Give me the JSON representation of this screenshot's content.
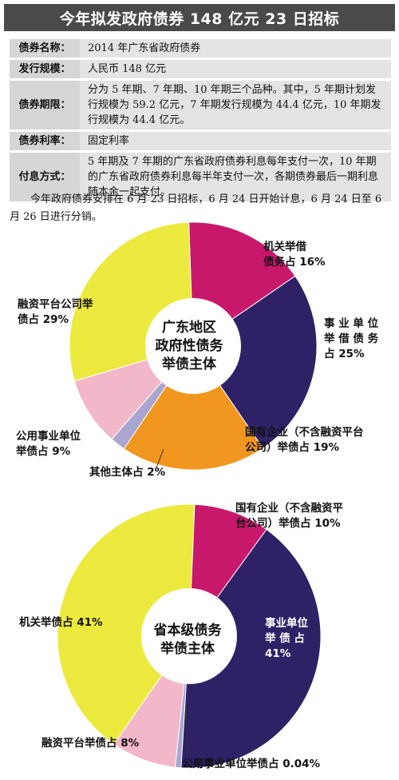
{
  "title": "今年拟发政府债券 148 亿元 23 日招标",
  "info": [
    {
      "key": "债券名称：",
      "value": "2014 年广东省政府债券"
    },
    {
      "key": "发行规模：",
      "value": "人民币 148 亿元"
    },
    {
      "key": "债券期限：",
      "value": "分为 5 年期、7 年期、10 年期三个品种。其中，5 年期计划发行规模为 59.2 亿元，7 年期发行规模为 44.4 亿元，10 年期发行规模为 44.4 亿元。"
    },
    {
      "key": "债券利率：",
      "value": "固定利率"
    },
    {
      "key": "付息方式：",
      "value": "5 年期及 7 年期的广东省政府债券利息每年支付一次，10 年期的广东省政府债券利息每半年支付一次，各期债券最后一期利息随本金一起支付。"
    }
  ],
  "paragraph": "今年政府债券安排在 6 月 23 日招标，6 月 24 日开始计息，6 月 24 日至 6 月 26 日进行分销。",
  "colors": {
    "magenta": "#c8186c",
    "navy": "#2e2166",
    "orange": "#f1961e",
    "lavender": "#a9a6cf",
    "pink": "#f2b7c9",
    "yellow": "#ecea3e"
  },
  "chart_data": [
    {
      "type": "pie",
      "center_label": [
        "广东地区",
        "政府性债务",
        "举债主体"
      ],
      "slices": [
        {
          "label": "机关举借债务占 16%",
          "value": 16,
          "color": "#c8186c"
        },
        {
          "label": "事业单位举借债务占 25%",
          "value": 25,
          "color": "#2e2166"
        },
        {
          "label": "国有企业（不含融资平台公司）举债占 19%",
          "value": 19,
          "color": "#f1961e"
        },
        {
          "label": "其他主体占 2%",
          "value": 2,
          "color": "#a9a6cf"
        },
        {
          "label": "公用事业单位举债占 9%",
          "value": 9,
          "color": "#f2b7c9"
        },
        {
          "label": "融资平台公司举债占 29%",
          "value": 29,
          "color": "#ecea3e"
        }
      ],
      "labels": {
        "jiguan": [
          "机关举借",
          "债务占 16%"
        ],
        "shiye": [
          "事 业 单 位",
          "举 借 债 务",
          "占 25%"
        ],
        "guoqi": [
          "国有企业（不含融资平台",
          "公司）举债占 19%"
        ],
        "qita": [
          "其他主体占 2%"
        ],
        "gongyong": [
          "公用事业单位",
          "举债占 9%"
        ],
        "rongzi": [
          "融资平台公司举",
          "债占 29%"
        ]
      }
    },
    {
      "type": "pie",
      "center_label": [
        "省本级债务",
        "举债主体"
      ],
      "slices": [
        {
          "label": "国有企业（不含融资平台公司）举债占 10%",
          "value": 10,
          "color": "#c8186c"
        },
        {
          "label": "事业单位举债占 41%",
          "value": 41,
          "color": "#2e2166"
        },
        {
          "label": "公用事业单位举债占 0.04%",
          "value": 0.04,
          "color": "#a9a6cf"
        },
        {
          "label": "融资平台举债占 8%",
          "value": 8,
          "color": "#f2b7c9"
        },
        {
          "label": "机关举债占 41%",
          "value": 41,
          "color": "#ecea3e"
        }
      ],
      "labels": {
        "guoqi": [
          "国有企业（不含融资平",
          "台公司）举债占 10%"
        ],
        "shiye": [
          "事业单位",
          "举 债 占",
          "41%"
        ],
        "gongyong": [
          "公用事业单位举债占 0.04%"
        ],
        "rongzi": [
          "融资平台举债占 8%"
        ],
        "jiguan": [
          "机关举债占 41%"
        ]
      }
    }
  ]
}
